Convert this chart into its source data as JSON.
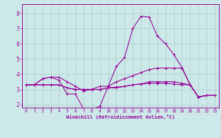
{
  "xlabel": "Windchill (Refroidissement éolien,°C)",
  "bg_color": "#cce8e8",
  "line_color": "#990099",
  "grid_color": "#aacccc",
  "xlim": [
    -0.5,
    23.5
  ],
  "ylim": [
    1.8,
    8.6
  ],
  "yticks": [
    2,
    3,
    4,
    5,
    6,
    7,
    8
  ],
  "xticks": [
    0,
    1,
    2,
    3,
    4,
    5,
    6,
    7,
    8,
    9,
    10,
    11,
    12,
    13,
    14,
    15,
    16,
    17,
    18,
    19,
    20,
    21,
    22,
    23
  ],
  "series": [
    [
      3.3,
      3.3,
      3.7,
      3.8,
      3.6,
      2.7,
      2.7,
      1.7,
      1.65,
      1.9,
      3.2,
      4.5,
      5.1,
      7.0,
      7.8,
      7.75,
      6.5,
      6.0,
      5.3,
      4.45,
      3.3,
      2.5,
      2.6,
      2.6
    ],
    [
      3.3,
      3.3,
      3.7,
      3.8,
      3.8,
      3.5,
      3.2,
      2.9,
      3.0,
      3.2,
      3.2,
      3.5,
      3.7,
      3.9,
      4.1,
      4.3,
      4.4,
      4.4,
      4.4,
      4.4,
      3.3,
      2.5,
      2.6,
      2.6
    ],
    [
      3.3,
      3.3,
      3.3,
      3.3,
      3.3,
      3.1,
      3.0,
      3.0,
      3.0,
      3.0,
      3.1,
      3.15,
      3.2,
      3.3,
      3.35,
      3.5,
      3.5,
      3.5,
      3.5,
      3.4,
      3.3,
      2.5,
      2.6,
      2.6
    ],
    [
      3.3,
      3.3,
      3.3,
      3.3,
      3.3,
      3.1,
      3.0,
      3.0,
      3.0,
      3.0,
      3.1,
      3.1,
      3.2,
      3.3,
      3.35,
      3.4,
      3.4,
      3.4,
      3.35,
      3.3,
      3.3,
      2.5,
      2.6,
      2.6
    ]
  ]
}
